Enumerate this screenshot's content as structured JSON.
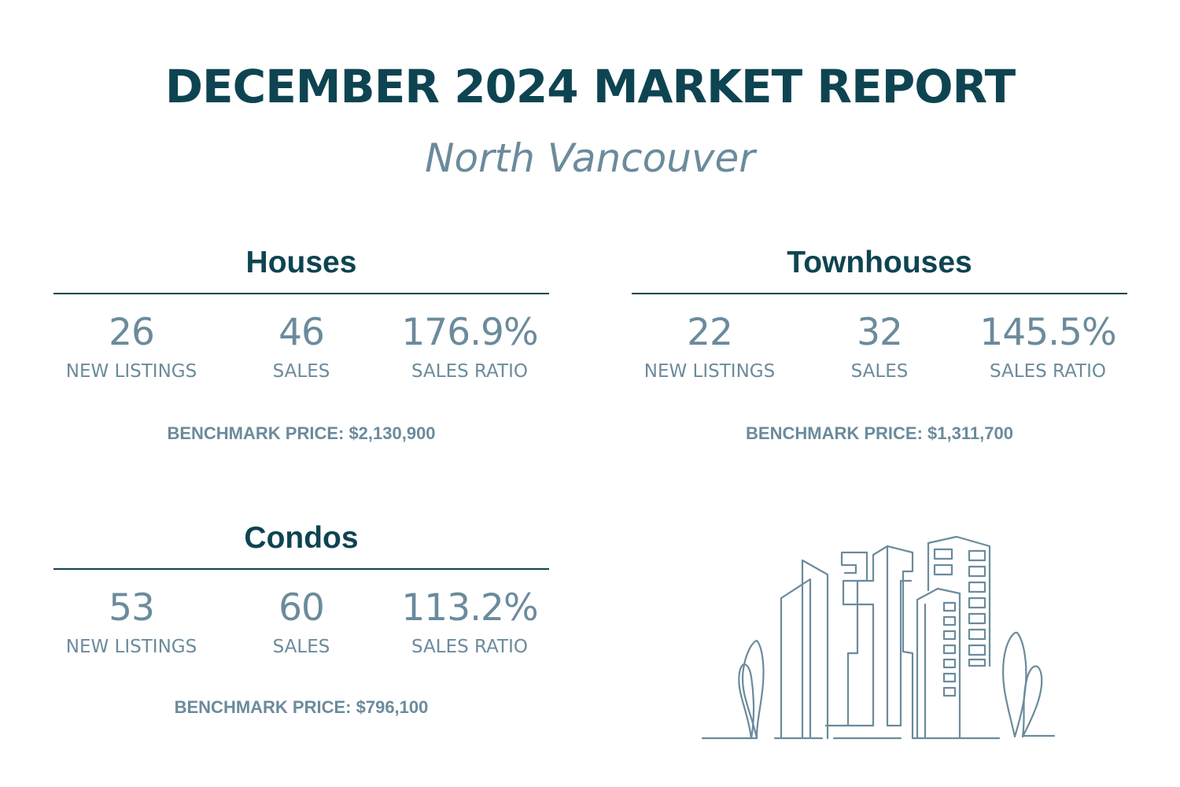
{
  "report": {
    "title": "DECEMBER 2024 MARKET REPORT",
    "subtitle": "North Vancouver"
  },
  "sections": [
    {
      "title": "Houses",
      "stats": [
        {
          "value": "26",
          "label": "NEW LISTINGS"
        },
        {
          "value": "46",
          "label": "SALES"
        },
        {
          "value": "176.9%",
          "label": "SALES RATIO"
        }
      ],
      "benchmark": "BENCHMARK PRICE: $2,130,900"
    },
    {
      "title": "Townhouses",
      "stats": [
        {
          "value": "22",
          "label": "NEW LISTINGS"
        },
        {
          "value": "32",
          "label": "SALES"
        },
        {
          "value": "145.5%",
          "label": "SALES RATIO"
        }
      ],
      "benchmark": "BENCHMARK PRICE: $1,311,700"
    },
    {
      "title": "Condos",
      "stats": [
        {
          "value": "53",
          "label": "NEW LISTINGS"
        },
        {
          "value": "60",
          "label": "SALES"
        },
        {
          "value": "113.2%",
          "label": "SALES RATIO"
        }
      ],
      "benchmark": "BENCHMARK PRICE: $796,100"
    }
  ],
  "colors": {
    "heading": "#0e4451",
    "muted": "#6b8b9c",
    "background": "#ffffff"
  },
  "illustration": {
    "icon": "city-skyline-line-icon"
  }
}
